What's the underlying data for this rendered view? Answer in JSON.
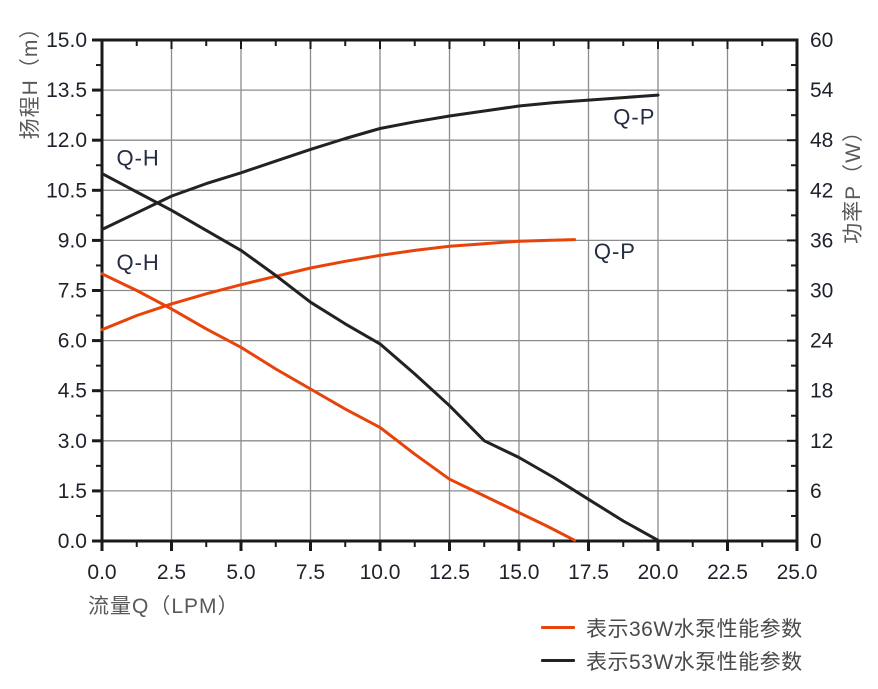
{
  "chart_data": {
    "type": "line",
    "title": "",
    "x_axis": {
      "label": "流量Q（LPM）",
      "min": 0,
      "max": 25,
      "major_step": 2.5,
      "minor_step": 1.25,
      "tick_labels": [
        "0.0",
        "2.5",
        "5.0",
        "7.5",
        "10.0",
        "12.5",
        "15.0",
        "17.5",
        "20.0",
        "22.5",
        "25.0"
      ]
    },
    "y_left": {
      "label": "扬程H（m）",
      "min": 0,
      "max": 15,
      "major_step": 1.5,
      "minor_step": 0.75,
      "tick_labels": [
        "0.0",
        "1.5",
        "3.0",
        "4.5",
        "6.0",
        "7.5",
        "9.0",
        "10.5",
        "12.0",
        "13.5",
        "15.0"
      ]
    },
    "y_right": {
      "label": "功率P（W）",
      "min": 0,
      "max": 60,
      "major_step": 6,
      "minor_step": 3,
      "tick_labels": [
        "0",
        "6",
        "12",
        "18",
        "24",
        "30",
        "36",
        "42",
        "48",
        "54",
        "60"
      ]
    },
    "grid": true,
    "legend_position": "bottom-right",
    "series": [
      {
        "id": "qh-36w",
        "name": "36W Q-H",
        "axis": "left",
        "color": "#E8430B",
        "points": [
          [
            0,
            8.0
          ],
          [
            1.25,
            7.5
          ],
          [
            2.5,
            6.95
          ],
          [
            3.75,
            6.35
          ],
          [
            5,
            5.8
          ],
          [
            6.25,
            5.15
          ],
          [
            7.5,
            4.55
          ],
          [
            8.75,
            3.95
          ],
          [
            10,
            3.4
          ],
          [
            11.25,
            2.6
          ],
          [
            12.5,
            1.85
          ],
          [
            13.75,
            1.35
          ],
          [
            15,
            0.85
          ],
          [
            16,
            0.45
          ],
          [
            17,
            0.02
          ]
        ]
      },
      {
        "id": "qp-36w",
        "name": "36W Q-P",
        "axis": "right",
        "color": "#E8430B",
        "points": [
          [
            0,
            25.3
          ],
          [
            1.25,
            27.0
          ],
          [
            2.5,
            28.4
          ],
          [
            3.75,
            29.6
          ],
          [
            5,
            30.7
          ],
          [
            6.25,
            31.7
          ],
          [
            7.5,
            32.7
          ],
          [
            8.75,
            33.5
          ],
          [
            10,
            34.2
          ],
          [
            11.25,
            34.8
          ],
          [
            12.5,
            35.3
          ],
          [
            13.75,
            35.6
          ],
          [
            15,
            35.9
          ],
          [
            16,
            36.0
          ],
          [
            17,
            36.1
          ]
        ]
      },
      {
        "id": "qh-53w",
        "name": "53W Q-H",
        "axis": "left",
        "color": "#222222",
        "points": [
          [
            0,
            11.0
          ],
          [
            1.25,
            10.45
          ],
          [
            2.5,
            9.9
          ],
          [
            3.75,
            9.3
          ],
          [
            5,
            8.7
          ],
          [
            6.25,
            7.95
          ],
          [
            7.5,
            7.15
          ],
          [
            8.75,
            6.5
          ],
          [
            10,
            5.9
          ],
          [
            11.25,
            5.0
          ],
          [
            12.5,
            4.05
          ],
          [
            13.75,
            3.0
          ],
          [
            15,
            2.5
          ],
          [
            16.25,
            1.9
          ],
          [
            17.5,
            1.25
          ],
          [
            18.75,
            0.6
          ],
          [
            20,
            0.02
          ]
        ]
      },
      {
        "id": "qp-53w",
        "name": "53W Q-P",
        "axis": "right",
        "color": "#222222",
        "points": [
          [
            0,
            37.3
          ],
          [
            1.25,
            39.3
          ],
          [
            2.5,
            41.3
          ],
          [
            3.75,
            42.8
          ],
          [
            5,
            44.1
          ],
          [
            6.25,
            45.5
          ],
          [
            7.5,
            46.9
          ],
          [
            8.75,
            48.2
          ],
          [
            10,
            49.4
          ],
          [
            11.25,
            50.2
          ],
          [
            12.5,
            50.9
          ],
          [
            13.75,
            51.5
          ],
          [
            15,
            52.1
          ],
          [
            16.25,
            52.5
          ],
          [
            17.5,
            52.8
          ],
          [
            18.75,
            53.1
          ],
          [
            20,
            53.4
          ]
        ]
      }
    ],
    "curve_labels": [
      {
        "id": "label-qh-53w",
        "text": "Q-H",
        "axis": "left",
        "q": 1.3,
        "v": 11.45,
        "color": "#252d42"
      },
      {
        "id": "label-qh-36w",
        "text": "Q-H",
        "axis": "left",
        "q": 1.3,
        "v": 8.32,
        "color": "#252d42"
      },
      {
        "id": "label-qp-53w",
        "text": "Q-P",
        "axis": "right",
        "q": 19.15,
        "v": 50.7,
        "color": "#252d42"
      },
      {
        "id": "label-qp-36w",
        "text": "Q-P",
        "axis": "right",
        "q": 18.45,
        "v": 34.6,
        "color": "#252d42"
      }
    ],
    "legend": {
      "entries": [
        {
          "label": "表示36W水泵性能参数",
          "color": "#E8430B"
        },
        {
          "label": "表示53W水泵性能参数",
          "color": "#222222"
        }
      ]
    },
    "style": {
      "grid_color": "#8c8c8c",
      "frame_color": "#1a1a1a",
      "tick_label_color": "#1e222b",
      "axis_title_color": "#595959",
      "background": "#ffffff"
    }
  }
}
